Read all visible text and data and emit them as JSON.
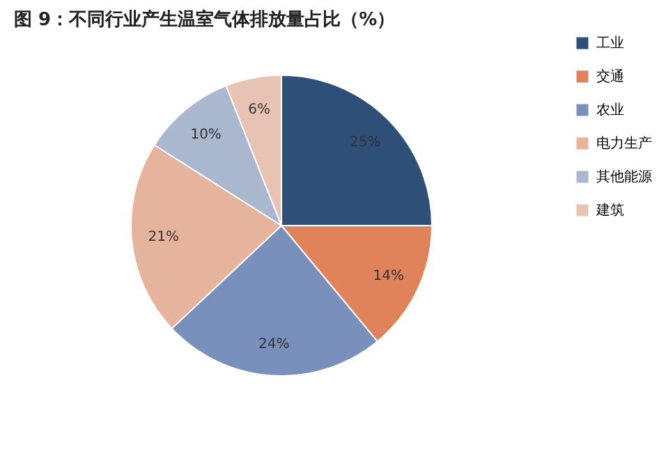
{
  "chart_data": {
    "type": "pie",
    "title": "图 9：不同行业产生温室气体排放量占比（%）",
    "categories": [
      "工业",
      "交通",
      "农业",
      "电力生产",
      "其他能源",
      "建筑"
    ],
    "values": [
      25,
      14,
      24,
      21,
      10,
      6
    ],
    "colors": [
      "#2e5078",
      "#e0835a",
      "#7890bb",
      "#e6b39c",
      "#a9b8cf",
      "#e8c3b3"
    ],
    "value_labels": [
      "25%",
      "14%",
      "24%",
      "21%",
      "10%",
      "6%"
    ],
    "legend": "right"
  }
}
